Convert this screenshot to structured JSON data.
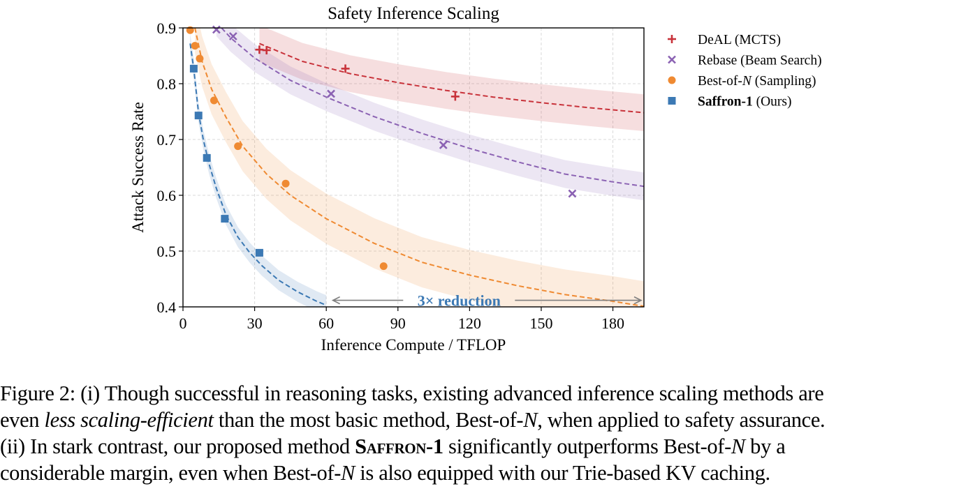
{
  "chart_data": {
    "type": "scatter",
    "title": "Safety Inference Scaling",
    "xlabel": "Inference Compute / TFLOP",
    "ylabel": "Attack Success Rate",
    "xlim": [
      0,
      193
    ],
    "ylim": [
      0.4,
      0.9
    ],
    "xticks": [
      0,
      30,
      60,
      90,
      120,
      150,
      180
    ],
    "yticks": [
      0.4,
      0.5,
      0.6,
      0.7,
      0.8,
      0.9
    ],
    "xtick_labels": [
      "0",
      "30",
      "60",
      "90",
      "120",
      "150",
      "180"
    ],
    "ytick_labels": [
      "0.4",
      "0.5",
      "0.6",
      "0.7",
      "0.8",
      "0.9"
    ],
    "grid": true,
    "legend_position": "outside-right",
    "series": [
      {
        "name": "DeAL (MCTS)",
        "legend": {
          "bold": "",
          "pre": "DeAL (MCTS)",
          "italic": "",
          "post": ""
        },
        "marker": "plus",
        "color": "#c8323a",
        "points": [
          [
            32,
            0.861
          ],
          [
            35,
            0.86
          ],
          [
            68,
            0.827
          ],
          [
            114,
            0.777
          ]
        ],
        "fit_curve": [
          [
            32,
            0.872
          ],
          [
            50,
            0.84
          ],
          [
            70,
            0.818
          ],
          [
            90,
            0.802
          ],
          [
            110,
            0.788
          ],
          [
            130,
            0.776
          ],
          [
            150,
            0.766
          ],
          [
            170,
            0.757
          ],
          [
            193,
            0.748
          ]
        ],
        "band_halfwidth": 0.033
      },
      {
        "name": "Rebase (Beam Search)",
        "legend": {
          "bold": "",
          "pre": "Rebase (Beam Search)",
          "italic": "",
          "post": ""
        },
        "marker": "x",
        "color": "#8b62b3",
        "points": [
          [
            14,
            0.897
          ],
          [
            21,
            0.885
          ],
          [
            62,
            0.782
          ],
          [
            109,
            0.69
          ],
          [
            163,
            0.603
          ]
        ],
        "fit_curve": [
          [
            14,
            0.91
          ],
          [
            20,
            0.882
          ],
          [
            30,
            0.846
          ],
          [
            45,
            0.806
          ],
          [
            60,
            0.776
          ],
          [
            80,
            0.741
          ],
          [
            100,
            0.711
          ],
          [
            120,
            0.684
          ],
          [
            140,
            0.66
          ],
          [
            160,
            0.638
          ],
          [
            180,
            0.624
          ],
          [
            193,
            0.616
          ]
        ],
        "band_halfwidth": 0.025
      },
      {
        "name": "Best-of-N (Sampling)",
        "legend": {
          "bold": "",
          "pre": "Best-of-",
          "italic": "N",
          "post": " (Sampling)"
        },
        "marker": "circle",
        "color": "#ef8a32",
        "points": [
          [
            3,
            0.896
          ],
          [
            5,
            0.868
          ],
          [
            7,
            0.845
          ],
          [
            13,
            0.77
          ],
          [
            23,
            0.688
          ],
          [
            43,
            0.621
          ],
          [
            84,
            0.473
          ]
        ],
        "fit_curve": [
          [
            5,
            0.9
          ],
          [
            8,
            0.84
          ],
          [
            12,
            0.79
          ],
          [
            18,
            0.74
          ],
          [
            25,
            0.688
          ],
          [
            35,
            0.638
          ],
          [
            45,
            0.6
          ],
          [
            60,
            0.558
          ],
          [
            80,
            0.514
          ],
          [
            100,
            0.48
          ],
          [
            120,
            0.457
          ],
          [
            140,
            0.438
          ],
          [
            160,
            0.422
          ],
          [
            180,
            0.41
          ],
          [
            193,
            0.401
          ]
        ],
        "band_halfwidth": 0.045
      },
      {
        "name": "Saffron-1 (Ours)",
        "legend": {
          "bold": "Saffron-1",
          "pre": " (Ours)",
          "italic": "",
          "post": ""
        },
        "marker": "square",
        "color": "#3c79b4",
        "points": [
          [
            4.5,
            0.827
          ],
          [
            6.5,
            0.743
          ],
          [
            10,
            0.667
          ],
          [
            17.5,
            0.558
          ],
          [
            32,
            0.497
          ]
        ],
        "fit_curve": [
          [
            3,
            0.872
          ],
          [
            4.5,
            0.827
          ],
          [
            6.5,
            0.748
          ],
          [
            8.5,
            0.7
          ],
          [
            11,
            0.655
          ],
          [
            14,
            0.612
          ],
          [
            18,
            0.565
          ],
          [
            23,
            0.525
          ],
          [
            28,
            0.497
          ],
          [
            33,
            0.474
          ],
          [
            40,
            0.448
          ],
          [
            48,
            0.427
          ],
          [
            56,
            0.41
          ],
          [
            60,
            0.403
          ]
        ],
        "band_halfwidth": 0.018
      }
    ],
    "annotation": {
      "text": "3× reduction",
      "arrow_from": [
        61,
        0.413
      ],
      "arrow_to": [
        193,
        0.413
      ],
      "color": "#3c79b4"
    }
  },
  "caption": {
    "line1": {
      "label": "Figure 2:",
      "text": " (i) Though successful in reasoning tasks, existing advanced inference scaling methods are"
    },
    "line2": {
      "pre": "even ",
      "em": "less scaling-efficient",
      "post_a": " than the most basic method, Best-of-",
      "var": "N",
      "post_b": ", when applied to safety assurance."
    },
    "line3": {
      "pre": "(ii) In stark contrast, our proposed method ",
      "method": "Saffron-1",
      "post_a": " significantly outperforms Best-of-",
      "var": "N",
      "post_b": " by a"
    },
    "line4": {
      "pre": "considerable margin, even when Best-of-",
      "var": "N",
      "post": " is also equipped with our Trie-based KV caching."
    }
  }
}
